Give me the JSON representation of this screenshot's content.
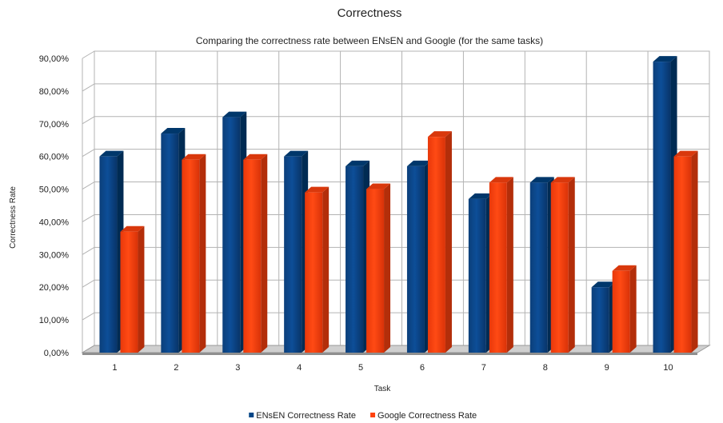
{
  "chart_data": {
    "type": "bar",
    "title": "Correctness",
    "subtitle": "Comparing the correctness rate between ENsEN and Google (for the same tasks)",
    "xlabel": "Task",
    "ylabel": "Correctness Rate",
    "categories": [
      "1",
      "2",
      "3",
      "4",
      "5",
      "6",
      "7",
      "8",
      "9",
      "10"
    ],
    "ylim": [
      0,
      90
    ],
    "yticks": [
      "0,00%",
      "10,00%",
      "20,00%",
      "30,00%",
      "40,00%",
      "50,00%",
      "60,00%",
      "70,00%",
      "80,00%",
      "90,00%"
    ],
    "grid": true,
    "legend_position": "bottom",
    "series": [
      {
        "name": "ENsEN Correctness Rate",
        "color": "#004586",
        "values": [
          60,
          67,
          72,
          60,
          57,
          57,
          47,
          52,
          20,
          89
        ]
      },
      {
        "name": "Google Correctness Rate",
        "color": "#ff420e",
        "values": [
          37,
          59,
          59,
          49,
          50,
          66,
          52,
          52,
          25,
          60
        ]
      }
    ]
  }
}
